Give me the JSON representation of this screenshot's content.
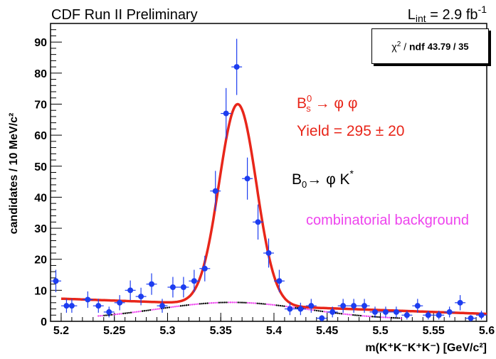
{
  "header": {
    "experiment": "CDF Run II Preliminary",
    "lumi_main": "L",
    "lumi_sub": "int",
    "lumi_value": " = 2.9 fb",
    "lumi_sup": "-1"
  },
  "stats": {
    "chi2_symbol": "χ",
    "chi2_sup": "2",
    "slash": " / ",
    "ndf_label": "ndf",
    "value": "43.79 / 35"
  },
  "annotations": {
    "signal_B": "B",
    "signal_B_sup": "0",
    "signal_B_sub": "s",
    "signal_decay": " → φ φ",
    "yield": "Yield = 295 ± 20",
    "bkg_B": "B",
    "bkg_B_sub": "0",
    "bkg_decay": "→ φ K",
    "bkg_sup": "*",
    "combinatorial": "combinatorial background"
  },
  "colors": {
    "data": "#1d3df0",
    "fit": "#e8261a",
    "signal_label": "#e8261a",
    "combinatorial": "#ee44ee",
    "bkg_label": "#000000"
  },
  "chart_data": {
    "type": "scatter",
    "ylabel": "candidates / 10 MeV/c²",
    "xlabel": "m(K⁺K⁻K⁺K⁻)  [GeV/c²]",
    "xlim": [
      5.19,
      5.6
    ],
    "ylim": [
      0,
      96
    ],
    "x_ticks": [
      5.2,
      5.25,
      5.3,
      5.35,
      5.4,
      5.45,
      5.5,
      5.55,
      5.6
    ],
    "x_tick_labels": [
      "5.2",
      "5.25",
      "5.3",
      "5.35",
      "5.4",
      "5.45",
      "5.5",
      "5.55",
      "5.6"
    ],
    "y_ticks": [
      0,
      10,
      20,
      30,
      40,
      50,
      60,
      70,
      80,
      90
    ],
    "y_tick_labels": [
      "0",
      "10",
      "20",
      "30",
      "40",
      "50",
      "60",
      "70",
      "80",
      "90"
    ],
    "bin_width": 0.005,
    "series": [
      {
        "kind": "data",
        "x": [
          5.195,
          5.205,
          5.21,
          5.225,
          5.235,
          5.245,
          5.255,
          5.265,
          5.275,
          5.285,
          5.295,
          5.305,
          5.315,
          5.325,
          5.335,
          5.345,
          5.355,
          5.365,
          5.375,
          5.385,
          5.395,
          5.405,
          5.415,
          5.425,
          5.435,
          5.445,
          5.455,
          5.465,
          5.475,
          5.485,
          5.495,
          5.505,
          5.515,
          5.525,
          5.535,
          5.545,
          5.555,
          5.565,
          5.575,
          5.585,
          5.595
        ],
        "y": [
          13,
          5,
          5,
          7,
          5,
          3,
          6,
          10,
          8,
          12,
          5,
          11,
          11,
          13,
          17,
          42,
          67,
          82,
          46,
          32,
          22,
          13,
          4,
          4,
          5,
          1,
          3,
          5,
          5,
          5,
          3,
          3,
          3,
          2,
          5,
          2,
          2,
          3,
          6,
          1,
          2
        ]
      },
      {
        "kind": "fit",
        "name": "fit",
        "peak_mass": 5.366,
        "peak_height": 70,
        "width": 0.0175,
        "background_start": 7.3,
        "background_end": 2.4
      },
      {
        "kind": "component",
        "name": "B0 → φ K*",
        "center": 5.36,
        "height": 5.5
      }
    ]
  }
}
